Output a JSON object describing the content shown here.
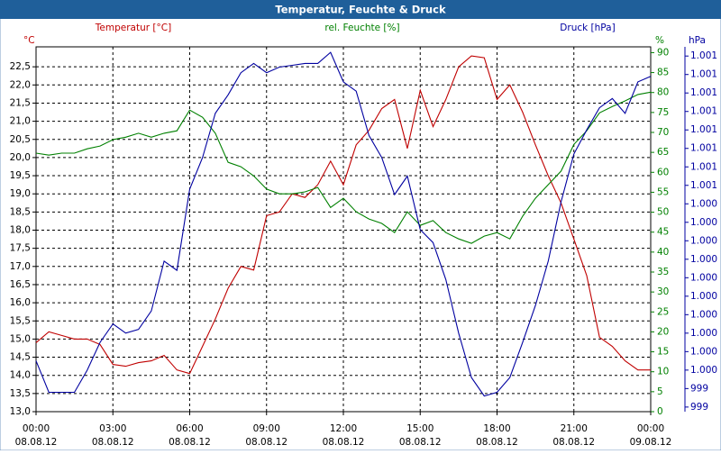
{
  "chart_data": {
    "type": "line",
    "title": "Temperatur, Feuchte & Druck",
    "ylabel": "Temperatur [°C]",
    "yunit": "°C",
    "y2label": "rel. Feuchte [%]",
    "y2unit": "%",
    "y3label": "Druck [hPa]",
    "y3unit": "hPa",
    "x": [
      0,
      0.5,
      1,
      1.5,
      2,
      2.5,
      3,
      3.5,
      4,
      4.5,
      5,
      5.5,
      6,
      6.5,
      7,
      7.5,
      8,
      8.5,
      9,
      9.5,
      10,
      10.5,
      11,
      11.5,
      12,
      12.5,
      13,
      13.5,
      14,
      14.5,
      15,
      15.5,
      16,
      16.5,
      17,
      17.5,
      18,
      18.5,
      19,
      19.5,
      20,
      20.5,
      21,
      21.5,
      22,
      22.5,
      23,
      23.5,
      24
    ],
    "xlim": [
      0,
      24
    ],
    "xticks": [
      {
        "value": 0,
        "label": "00:00"
      },
      {
        "value": 3,
        "label": "03:00"
      },
      {
        "value": 6,
        "label": "06:00"
      },
      {
        "value": 9,
        "label": "09:00"
      },
      {
        "value": 12,
        "label": "12:00"
      },
      {
        "value": 15,
        "label": "15:00"
      },
      {
        "value": 18,
        "label": "18:00"
      },
      {
        "value": 21,
        "label": "21:00"
      },
      {
        "value": 24,
        "label": "00:00"
      }
    ],
    "xtick_dates": [
      "08.08.12",
      "08.08.12",
      "08.08.12",
      "08.08.12",
      "08.08.12",
      "08.08.12",
      "08.08.12",
      "08.08.12",
      "09.08.12"
    ],
    "ylim": [
      13,
      23
    ],
    "yticks": [
      {
        "value": 13,
        "label": "13,0"
      },
      {
        "value": 13.5,
        "label": "13,5"
      },
      {
        "value": 14,
        "label": "14,0"
      },
      {
        "value": 14.5,
        "label": "14,5"
      },
      {
        "value": 15,
        "label": "15,0"
      },
      {
        "value": 15.5,
        "label": "15,5"
      },
      {
        "value": 16,
        "label": "16,0"
      },
      {
        "value": 16.5,
        "label": "16,5"
      },
      {
        "value": 17,
        "label": "17,0"
      },
      {
        "value": 17.5,
        "label": "17,5"
      },
      {
        "value": 18,
        "label": "18,0"
      },
      {
        "value": 18.5,
        "label": "18,5"
      },
      {
        "value": 19,
        "label": "19,0"
      },
      {
        "value": 19.5,
        "label": "19,5"
      },
      {
        "value": 20,
        "label": "20,0"
      },
      {
        "value": 20.5,
        "label": "20,5"
      },
      {
        "value": 21,
        "label": "21,0"
      },
      {
        "value": 21.5,
        "label": "21,5"
      },
      {
        "value": 22,
        "label": "22,0"
      },
      {
        "value": 22.5,
        "label": "22,5"
      }
    ],
    "y2lim": [
      0,
      91
    ],
    "y2ticks": [
      0,
      5,
      10,
      15,
      20,
      25,
      30,
      35,
      40,
      45,
      50,
      55,
      60,
      65,
      70,
      75,
      80,
      85,
      90
    ],
    "y3lim": [
      999.275,
      1001.24
    ],
    "y3ticks": [
      {
        "value": 999.3,
        "label": "999"
      },
      {
        "value": 999.4,
        "label": "999"
      },
      {
        "value": 999.5,
        "label": "1.000"
      },
      {
        "value": 999.6,
        "label": "1.000"
      },
      {
        "value": 999.7,
        "label": "1.000"
      },
      {
        "value": 999.8,
        "label": "1.000"
      },
      {
        "value": 999.9,
        "label": "1.000"
      },
      {
        "value": 1000.0,
        "label": "1.000"
      },
      {
        "value": 1000.1,
        "label": "1.000"
      },
      {
        "value": 1000.2,
        "label": "1.000"
      },
      {
        "value": 1000.3,
        "label": "1.000"
      },
      {
        "value": 1000.4,
        "label": "1.000"
      },
      {
        "value": 1000.5,
        "label": "1.001"
      },
      {
        "value": 1000.6,
        "label": "1.001"
      },
      {
        "value": 1000.7,
        "label": "1.001"
      },
      {
        "value": 1000.8,
        "label": "1.001"
      },
      {
        "value": 1000.9,
        "label": "1.001"
      },
      {
        "value": 1001.0,
        "label": "1.001"
      },
      {
        "value": 1001.1,
        "label": "1.001"
      },
      {
        "value": 1001.2,
        "label": "1.001"
      }
    ],
    "grid": true,
    "series": [
      {
        "name": "Temperatur [°C]",
        "color": "#c00000",
        "axis": "y",
        "values": [
          14.9,
          15.2,
          15.1,
          15.0,
          15.0,
          14.85,
          14.3,
          14.25,
          14.35,
          14.4,
          14.55,
          14.15,
          14.05,
          14.8,
          15.55,
          16.4,
          17.0,
          16.9,
          18.4,
          18.5,
          19.0,
          18.9,
          19.25,
          19.9,
          19.25,
          20.35,
          20.75,
          21.35,
          21.6,
          20.25,
          21.85,
          20.85,
          21.6,
          22.5,
          22.8,
          22.75,
          21.6,
          22.0,
          21.25,
          20.35,
          19.5,
          18.75,
          17.75,
          16.75,
          15.05,
          14.8,
          14.4,
          14.15,
          14.15
        ]
      },
      {
        "name": "rel. Feuchte [%]",
        "color": "#008000",
        "axis": "y2",
        "values": [
          64.8,
          64.3,
          64.8,
          64.8,
          65.9,
          66.6,
          68.2,
          68.8,
          69.8,
          68.8,
          69.8,
          70.4,
          75.6,
          73.8,
          69.8,
          62.5,
          61.4,
          59.1,
          55.8,
          54.6,
          54.6,
          55.1,
          56.2,
          51.2,
          53.5,
          50.1,
          48.3,
          47.2,
          44.9,
          50.1,
          46.7,
          47.9,
          44.9,
          43.3,
          42.2,
          44.0,
          44.9,
          43.3,
          49.0,
          53.5,
          56.9,
          60.3,
          67.0,
          70.4,
          74.9,
          76.5,
          77.9,
          79.5,
          80.1
        ]
      },
      {
        "name": "Druck [hPa]",
        "color": "#0000a0",
        "axis": "y3",
        "values": [
          999.55,
          999.38,
          999.38,
          999.38,
          999.5,
          999.65,
          999.75,
          999.7,
          999.72,
          999.82,
          1000.09,
          1000.04,
          1000.48,
          1000.65,
          1000.89,
          1000.99,
          1001.11,
          1001.16,
          1001.11,
          1001.14,
          1001.15,
          1001.16,
          1001.16,
          1001.22,
          1001.06,
          1001.01,
          1000.77,
          1000.65,
          1000.45,
          1000.55,
          1000.26,
          1000.19,
          999.99,
          999.7,
          999.46,
          999.36,
          999.38,
          999.46,
          999.65,
          999.85,
          1000.09,
          1000.41,
          1000.67,
          1000.8,
          1000.92,
          1000.97,
          1000.89,
          1001.06,
          1001.09
        ]
      }
    ]
  }
}
